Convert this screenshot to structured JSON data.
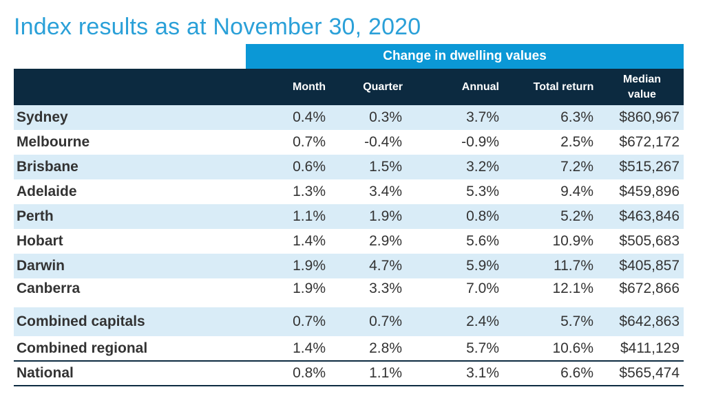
{
  "title": "Index results as at November 30, 2020",
  "group_header": "Change in dwelling values",
  "columns": {
    "month": "Month",
    "quarter": "Quarter",
    "annual": "Annual",
    "total_return": "Total return",
    "median_line1": "Median",
    "median_line2": "value"
  },
  "rows": [
    {
      "name": "Sydney",
      "month": "0.4%",
      "quarter": "0.3%",
      "annual": "3.7%",
      "total_return": "6.3%",
      "median": "$860,967"
    },
    {
      "name": "Melbourne",
      "month": "0.7%",
      "quarter": "-0.4%",
      "annual": "-0.9%",
      "total_return": "2.5%",
      "median": "$672,172"
    },
    {
      "name": "Brisbane",
      "month": "0.6%",
      "quarter": "1.5%",
      "annual": "3.2%",
      "total_return": "7.2%",
      "median": "$515,267"
    },
    {
      "name": "Adelaide",
      "month": "1.3%",
      "quarter": "3.4%",
      "annual": "5.3%",
      "total_return": "9.4%",
      "median": "$459,896"
    },
    {
      "name": "Perth",
      "month": "1.1%",
      "quarter": "1.9%",
      "annual": "0.8%",
      "total_return": "5.2%",
      "median": "$463,846"
    },
    {
      "name": "Hobart",
      "month": "1.4%",
      "quarter": "2.9%",
      "annual": "5.6%",
      "total_return": "10.9%",
      "median": "$505,683"
    },
    {
      "name": "Darwin",
      "month": "1.9%",
      "quarter": "4.7%",
      "annual": "5.9%",
      "total_return": "11.7%",
      "median": "$405,857"
    },
    {
      "name": "Canberra",
      "month": "1.9%",
      "quarter": "3.3%",
      "annual": "7.0%",
      "total_return": "12.1%",
      "median": "$672,866"
    },
    {
      "name": "Combined capitals",
      "month": "0.7%",
      "quarter": "0.7%",
      "annual": "2.4%",
      "total_return": "5.7%",
      "median": "$642,863"
    },
    {
      "name": "Combined regional",
      "month": "1.4%",
      "quarter": "2.8%",
      "annual": "5.7%",
      "total_return": "10.6%",
      "median": "$411,129"
    },
    {
      "name": "National",
      "month": "0.8%",
      "quarter": "1.1%",
      "annual": "3.1%",
      "total_return": "6.6%",
      "median": "$565,474"
    }
  ],
  "colors": {
    "title": "#2aa0d8",
    "group_header_bg": "#0b98d6",
    "column_header_bg": "#0c2a40",
    "row_shade": "#d9ecf7"
  }
}
